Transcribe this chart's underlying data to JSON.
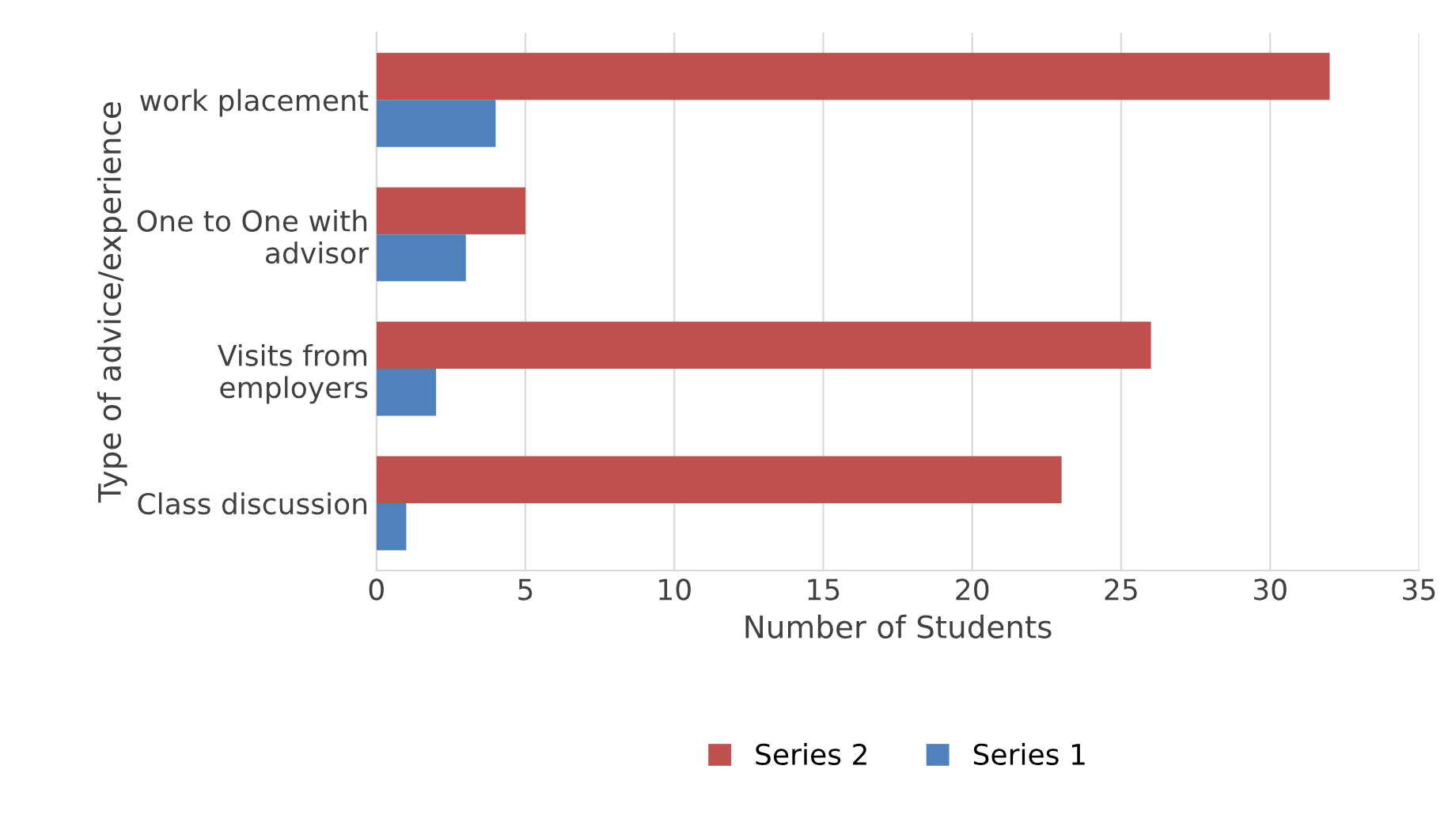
{
  "chart_data": {
    "type": "bar",
    "orientation": "horizontal",
    "xlabel": "Number of Students",
    "ylabel": "Type of advice/experience",
    "categories": [
      "work placement",
      "One to One with\nadvisor",
      "Visits from\nemployers",
      "Class discussion"
    ],
    "series": [
      {
        "name": "Series 2",
        "color": "#c0504d",
        "values": [
          32,
          5,
          26,
          23
        ]
      },
      {
        "name": "Series 1",
        "color": "#4f81bd",
        "values": [
          4,
          3,
          2,
          1
        ]
      }
    ],
    "xlim": [
      0,
      35
    ],
    "xticks": [
      0,
      5,
      10,
      15,
      20,
      25,
      30,
      35
    ],
    "grid": "x",
    "legend": "bottom"
  }
}
